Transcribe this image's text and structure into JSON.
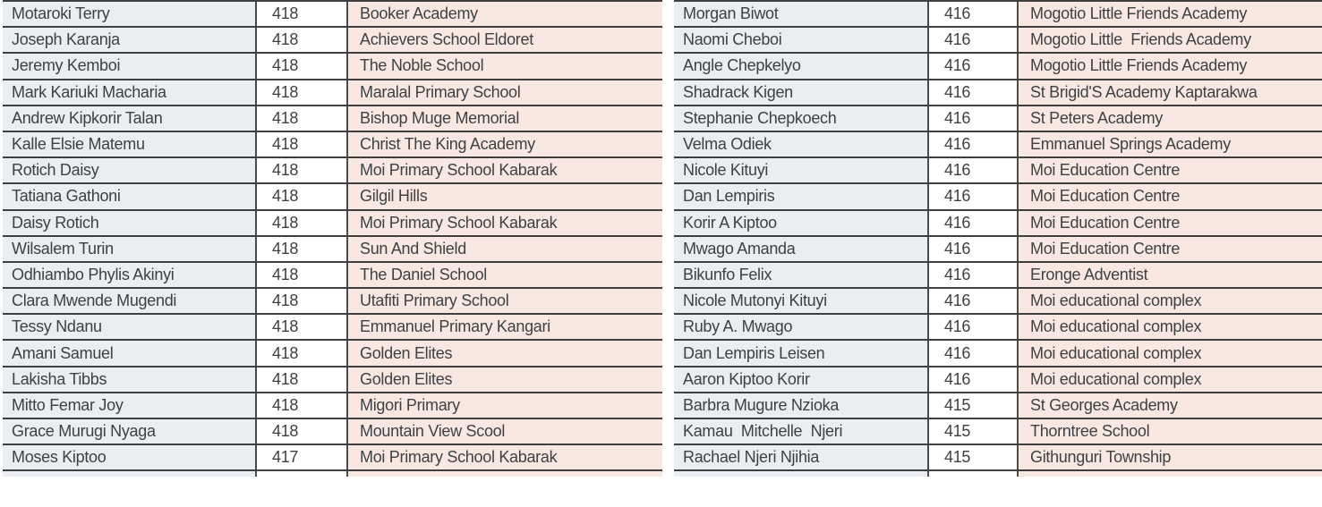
{
  "colors": {
    "name_column_bg": "#eaedf1",
    "score_column_bg": "#ffffff",
    "school_column_bg": "#f9e8e1",
    "row_border": "#3f3f3f",
    "text": "#3e4144"
  },
  "tables": [
    {
      "id": "left",
      "rows": [
        {
          "name": "Motaroki Terry",
          "score": "418",
          "school": "Booker Academy"
        },
        {
          "name": "Joseph Karanja",
          "score": "418",
          "school": "Achievers School Eldoret"
        },
        {
          "name": "Jeremy Kemboi",
          "score": "418",
          "school": "The Noble School"
        },
        {
          "name": "Mark Kariuki Macharia",
          "score": "418",
          "school": "Maralal Primary School"
        },
        {
          "name": "Andrew Kipkorir Talan",
          "score": "418",
          "school": "Bishop Muge Memorial"
        },
        {
          "name": "Kalle Elsie Matemu",
          "score": "418",
          "school": "Christ The King Academy"
        },
        {
          "name": "Rotich Daisy",
          "score": "418",
          "school": "Moi Primary School Kabarak"
        },
        {
          "name": "Tatiana Gathoni",
          "score": "418",
          "school": "Gilgil Hills"
        },
        {
          "name": "Daisy Rotich",
          "score": "418",
          "school": "Moi Primary School Kabarak"
        },
        {
          "name": "Wilsalem Turin",
          "score": "418",
          "school": "Sun And Shield"
        },
        {
          "name": "Odhiambo Phylis Akinyi",
          "score": "418",
          "school": "The Daniel School"
        },
        {
          "name": "Clara Mwende Mugendi",
          "score": "418",
          "school": "Utafiti Primary School"
        },
        {
          "name": "Tessy Ndanu",
          "score": "418",
          "school": "Emmanuel Primary Kangari"
        },
        {
          "name": "Amani Samuel",
          "score": "418",
          "school": "Golden Elites"
        },
        {
          "name": "Lakisha Tibbs",
          "score": "418",
          "school": "Golden Elites"
        },
        {
          "name": "Mitto Femar Joy",
          "score": "418",
          "school": "Migori Primary"
        },
        {
          "name": "Grace Murugi Nyaga",
          "score": "418",
          "school": "Mountain View Scool"
        },
        {
          "name": "Moses Kiptoo",
          "score": "417",
          "school": "Moi Primary School Kabarak"
        }
      ]
    },
    {
      "id": "right",
      "rows": [
        {
          "name": "Morgan Biwot",
          "score": "416",
          "school": "Mogotio Little Friends Academy"
        },
        {
          "name": "Naomi Cheboi",
          "score": "416",
          "school": "Mogotio Little  Friends Academy"
        },
        {
          "name": "Angle Chepkelyo",
          "score": "416",
          "school": "Mogotio Little Friends Academy"
        },
        {
          "name": "Shadrack Kigen",
          "score": "416",
          "school": "St Brigid'S Academy Kaptarakwa"
        },
        {
          "name": "Stephanie Chepkoech",
          "score": "416",
          "school": "St Peters Academy"
        },
        {
          "name": "Velma Odiek",
          "score": "416",
          "school": "Emmanuel Springs Academy"
        },
        {
          "name": "Nicole Kituyi",
          "score": "416",
          "school": "Moi Education Centre"
        },
        {
          "name": "Dan Lempiris",
          "score": "416",
          "school": "Moi Education Centre"
        },
        {
          "name": "Korir A Kiptoo",
          "score": "416",
          "school": "Moi Education Centre"
        },
        {
          "name": "Mwago Amanda",
          "score": "416",
          "school": "Moi Education Centre"
        },
        {
          "name": "Bikunfo Felix",
          "score": "416",
          "school": "Eronge Adventist"
        },
        {
          "name": "Nicole Mutonyi Kituyi",
          "score": "416",
          "school": "Moi educational complex"
        },
        {
          "name": "Ruby A. Mwago",
          "score": "416",
          "school": "Moi educational complex"
        },
        {
          "name": "Dan Lempiris Leisen",
          "score": "416",
          "school": "Moi educational complex"
        },
        {
          "name": "Aaron Kiptoo Korir",
          "score": "416",
          "school": "Moi educational complex"
        },
        {
          "name": "Barbra Mugure Nzioka",
          "score": "415",
          "school": "St Georges Academy"
        },
        {
          "name": "Kamau  Mitchelle  Njeri",
          "score": "415",
          "school": "Thorntree School"
        },
        {
          "name": "Rachael Njeri Njihia",
          "score": "415",
          "school": "Githunguri Township"
        }
      ]
    }
  ]
}
